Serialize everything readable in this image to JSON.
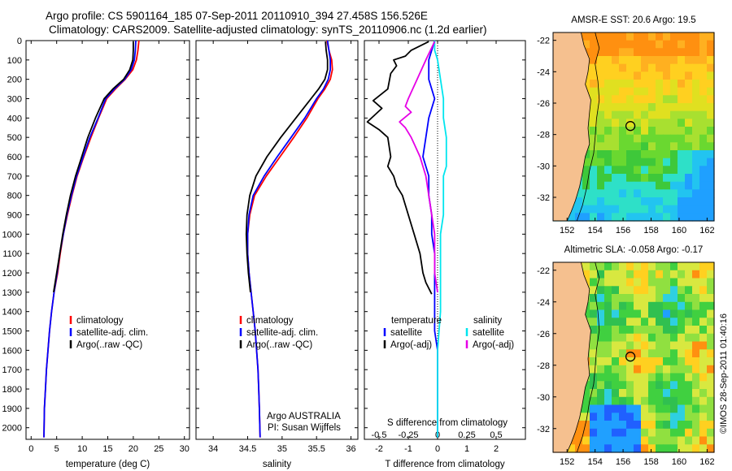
{
  "header": {
    "line1": "Argo profile: CS 5901164_185 07-Sep-2011 20110910_394 27.458S 156.526E",
    "line2": "Climatology: CARS2009. Satellite-adjusted climatology: synTS_20110906.nc (1.2d earlier)"
  },
  "colors": {
    "climatology": "#ff0000",
    "satellite": "#0000ff",
    "argo": "#000000",
    "sal_satellite": "#00e5ee",
    "sal_argo": "#e600e6",
    "land": "#f5c08f"
  },
  "depth_axis": {
    "ticks": [
      "0",
      "100",
      "200",
      "300",
      "400",
      "500",
      "600",
      "700",
      "800",
      "900",
      "1000",
      "1100",
      "1200",
      "1300",
      "1400",
      "1500",
      "1600",
      "1700",
      "1800",
      "1900",
      "2000"
    ],
    "ylim": [
      0,
      2060
    ]
  },
  "chart_data": [
    {
      "type": "line",
      "id": "temperature",
      "xlabel": "temperature (deg C)",
      "xlim": [
        -1,
        31
      ],
      "xticks": [
        "0",
        "5",
        "10",
        "15",
        "20",
        "25",
        "30"
      ],
      "xtick_values": [
        0,
        5,
        10,
        15,
        20,
        25,
        30
      ],
      "legend": [
        "climatology",
        "satellite-adj. clim.",
        "Argo(..raw -QC)"
      ],
      "series": [
        {
          "name": "climatology",
          "color": "red",
          "x": [
            21.1,
            20.9,
            20.6,
            19.9,
            18.4,
            16.5,
            14.8,
            13.2,
            11.7,
            10.3,
            9.0,
            8.0,
            7.1,
            6.3,
            5.7,
            5.2,
            4.5,
            4.0,
            3.6,
            3.3,
            3.0,
            2.8,
            2.6,
            2.5
          ],
          "y": [
            0,
            50,
            100,
            150,
            200,
            250,
            300,
            400,
            500,
            600,
            700,
            800,
            900,
            1000,
            1100,
            1200,
            1300,
            1400,
            1500,
            1600,
            1700,
            1800,
            1900,
            2050
          ]
        },
        {
          "name": "satellite-adj. clim.",
          "color": "blue",
          "x": [
            20.5,
            20.4,
            20.2,
            19.6,
            18.3,
            16.3,
            14.6,
            13.1,
            11.5,
            10.2,
            8.9,
            7.9,
            7.0,
            6.3,
            5.6,
            5.1,
            4.5,
            4.0,
            3.6,
            3.3,
            3.0,
            2.8,
            2.6,
            2.5
          ],
          "y": [
            0,
            50,
            100,
            150,
            200,
            250,
            300,
            400,
            500,
            600,
            700,
            800,
            900,
            1000,
            1100,
            1200,
            1300,
            1400,
            1500,
            1600,
            1700,
            1800,
            1900,
            2050
          ]
        },
        {
          "name": "Argo(..raw -QC)",
          "color": "black",
          "x": [
            20.0,
            20.0,
            19.9,
            19.3,
            18.1,
            16.0,
            14.3,
            12.6,
            11.1,
            9.9,
            8.7,
            7.7,
            6.9,
            6.2,
            5.6,
            5.0,
            4.4
          ],
          "y": [
            5,
            50,
            100,
            150,
            200,
            250,
            300,
            400,
            500,
            600,
            700,
            800,
            900,
            1000,
            1100,
            1200,
            1300
          ]
        }
      ]
    },
    {
      "type": "line",
      "id": "salinity",
      "xlabel": "salinity",
      "xlim": [
        33.75,
        36.1
      ],
      "xticks": [
        "34",
        "34.5",
        "35",
        "35.5",
        "36"
      ],
      "xtick_values": [
        34,
        34.5,
        35,
        35.5,
        36
      ],
      "legend": [
        "climatology",
        "satellite-adj. clim.",
        "Argo(..raw -QC)"
      ],
      "annotation": [
        "Argo AUSTRALIA",
        "PI: Susan Wijffels"
      ],
      "series": [
        {
          "name": "climatology",
          "color": "red",
          "x": [
            35.65,
            35.68,
            35.72,
            35.73,
            35.7,
            35.62,
            35.52,
            35.36,
            35.17,
            34.97,
            34.77,
            34.6,
            34.53,
            34.5,
            34.5,
            34.52,
            34.55,
            34.58,
            34.61,
            34.63,
            34.65,
            34.66,
            34.67,
            34.68
          ],
          "y": [
            0,
            50,
            100,
            150,
            200,
            250,
            300,
            400,
            500,
            600,
            700,
            800,
            900,
            1000,
            1100,
            1200,
            1300,
            1400,
            1500,
            1600,
            1700,
            1800,
            1900,
            2050
          ]
        },
        {
          "name": "satellite-adj. clim.",
          "color": "blue",
          "x": [
            35.66,
            35.68,
            35.7,
            35.7,
            35.67,
            35.6,
            35.5,
            35.33,
            35.13,
            34.93,
            34.74,
            34.58,
            34.52,
            34.5,
            34.5,
            34.52,
            34.55,
            34.58,
            34.61,
            34.63,
            34.65,
            34.66,
            34.67,
            34.68
          ],
          "y": [
            0,
            50,
            100,
            150,
            200,
            250,
            300,
            400,
            500,
            600,
            700,
            800,
            900,
            1000,
            1100,
            1200,
            1300,
            1400,
            1500,
            1600,
            1700,
            1800,
            1900,
            2050
          ]
        },
        {
          "name": "Argo(..raw -QC)",
          "color": "black",
          "x": [
            35.63,
            35.64,
            35.66,
            35.66,
            35.62,
            35.53,
            35.42,
            35.2,
            34.98,
            34.78,
            34.62,
            34.53,
            34.49,
            34.48,
            34.49,
            34.51,
            34.54
          ],
          "y": [
            5,
            50,
            100,
            150,
            200,
            250,
            300,
            400,
            500,
            600,
            700,
            800,
            900,
            1000,
            1100,
            1200,
            1300
          ]
        }
      ]
    },
    {
      "type": "line",
      "id": "difference",
      "xlabel": "T difference from climatology",
      "top_label": "S difference from climatology",
      "xlim": [
        -2.5,
        3
      ],
      "xticks": [
        "-2",
        "-1",
        "0",
        "1",
        "2"
      ],
      "xtick_values": [
        -2,
        -1,
        0,
        1,
        2
      ],
      "sticks": [
        "-0.5",
        "-0.25",
        "0",
        "0.25",
        "0.5"
      ],
      "stick_values": [
        -2,
        -1,
        0,
        1,
        2
      ],
      "legend_left_title": "temperature",
      "legend_right_title": "salinity",
      "legend": [
        "satellite",
        "Argo(-adj)",
        "satellite",
        "Argo(-adj)"
      ],
      "series": [
        {
          "name": "temperature satellite",
          "color": "blue",
          "x": [
            -0.1,
            -0.2,
            -0.3,
            -0.3,
            -0.2,
            -0.1,
            -0.2,
            -0.3,
            -0.4,
            -0.5,
            -0.4,
            -0.3,
            -0.3,
            -0.2,
            -0.2,
            -0.1,
            -0.1,
            -0.1,
            -0.1,
            0.0,
            0.0
          ],
          "y": [
            0,
            50,
            100,
            200,
            250,
            300,
            350,
            400,
            500,
            600,
            650,
            700,
            800,
            900,
            1000,
            1100,
            1200,
            1400,
            1500,
            1600,
            2050
          ]
        },
        {
          "name": "temperature Argo(-adj)",
          "color": "black",
          "x": [
            -0.3,
            -0.9,
            -1.1,
            -1.5,
            -1.4,
            -1.6,
            -1.7,
            -2.2,
            -1.9,
            -2.4,
            -2.0,
            -1.7,
            -1.6,
            -1.7,
            -1.5,
            -1.4,
            -1.2,
            -1.0,
            -0.8,
            -0.6,
            -0.5,
            -0.4,
            -0.2
          ],
          "y": [
            5,
            50,
            80,
            100,
            130,
            170,
            250,
            310,
            350,
            420,
            460,
            500,
            600,
            650,
            700,
            750,
            800,
            900,
            1000,
            1100,
            1200,
            1250,
            1310
          ]
        },
        {
          "name": "salinity satellite",
          "color": "cyan",
          "x": [
            -0.1,
            -0.1,
            0.0,
            0.1,
            0.2,
            0.2,
            0.3,
            0.3,
            0.3,
            0.2,
            0.2,
            0.2,
            0.1,
            0.1,
            0.1,
            0.1,
            0.0,
            0.0,
            0.0
          ],
          "y": [
            0,
            50,
            100,
            200,
            300,
            400,
            500,
            600,
            650,
            700,
            800,
            900,
            1000,
            1100,
            1200,
            1400,
            1600,
            1800,
            2050
          ]
        },
        {
          "name": "salinity Argo(-adj)",
          "color": "magenta",
          "x": [
            -0.1,
            -0.4,
            -0.7,
            -1.0,
            -1.1,
            -0.9,
            -1.3,
            -1.1,
            -0.9,
            -0.6,
            -0.4,
            -0.3,
            -0.2,
            -0.1,
            -0.1,
            0.0
          ],
          "y": [
            5,
            100,
            200,
            300,
            340,
            370,
            420,
            450,
            500,
            600,
            700,
            800,
            900,
            1000,
            1200,
            1300
          ]
        }
      ]
    }
  ],
  "maps": [
    {
      "title": "AMSR-E SST: 20.6 Argo: 19.5",
      "xticks": [
        "152",
        "154",
        "156",
        "158",
        "160",
        "162"
      ],
      "yticks": [
        "-22",
        "-24",
        "-26",
        "-28",
        "-30",
        "-32"
      ],
      "lon": [
        151,
        162.5
      ],
      "lat": [
        -33.5,
        -21.5
      ],
      "argo_lon": 156.526,
      "argo_lat": -27.458
    },
    {
      "title": "Altimetric SLA: -0.058 Argo: -0.17",
      "xticks": [
        "152",
        "154",
        "156",
        "158",
        "160",
        "162"
      ],
      "yticks": [
        "-22",
        "-24",
        "-26",
        "-28",
        "-30",
        "-32"
      ],
      "lon": [
        151,
        162.5
      ],
      "lat": [
        -33.5,
        -21.5
      ],
      "argo_lon": 156.526,
      "argo_lat": -27.458
    }
  ],
  "credit": "©IMOS 28-Sep-2011 01:40:16"
}
